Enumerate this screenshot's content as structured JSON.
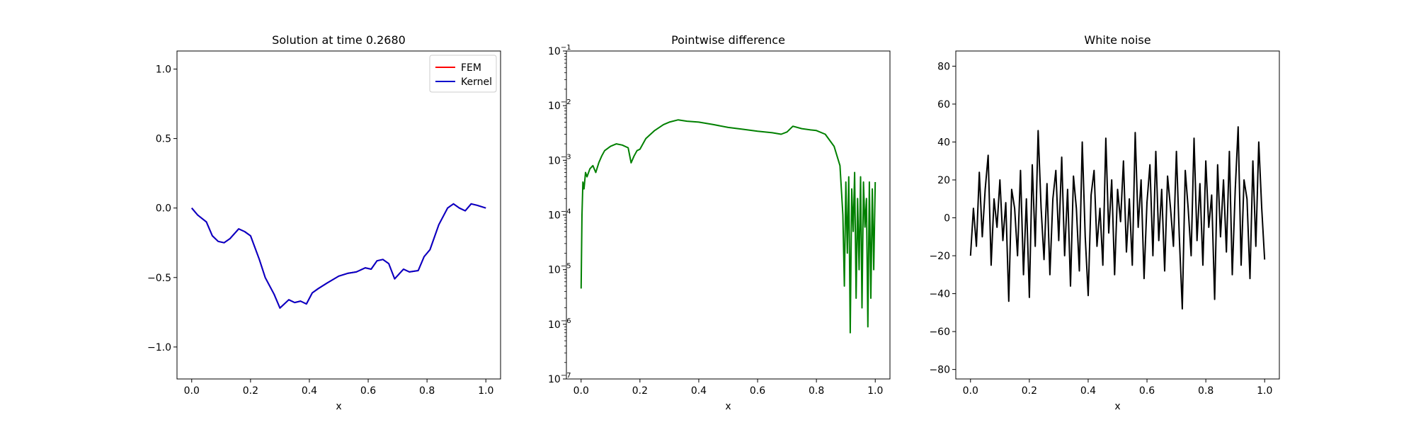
{
  "chart_data": [
    {
      "type": "line",
      "title": "Solution at time 0.2680",
      "xlabel": "x",
      "ylabel": "",
      "xlim": [
        -0.05,
        1.05
      ],
      "ylim": [
        -1.23,
        1.13
      ],
      "xticks": [
        0.0,
        0.2,
        0.4,
        0.6,
        0.8,
        1.0
      ],
      "xtick_labels": [
        "0.0",
        "0.2",
        "0.4",
        "0.6",
        "0.8",
        "1.0"
      ],
      "yticks": [
        -1.0,
        -0.5,
        0.0,
        0.5,
        1.0
      ],
      "ytick_labels": [
        "−1.0",
        "−0.5",
        "0.0",
        "0.5",
        "1.0"
      ],
      "grid": false,
      "legend": {
        "position": "top-right",
        "entries": [
          "FEM",
          "Kernel"
        ]
      },
      "series": [
        {
          "name": "FEM",
          "color": "#ff0000",
          "x": [
            0,
            0.02,
            0.05,
            0.07,
            0.09,
            0.11,
            0.13,
            0.16,
            0.18,
            0.2,
            0.23,
            0.25,
            0.28,
            0.3,
            0.33,
            0.35,
            0.37,
            0.39,
            0.41,
            0.43,
            0.46,
            0.5,
            0.53,
            0.56,
            0.59,
            0.61,
            0.63,
            0.65,
            0.67,
            0.69,
            0.72,
            0.74,
            0.77,
            0.79,
            0.81,
            0.84,
            0.87,
            0.89,
            0.91,
            0.93,
            0.95,
            0.97,
            1.0
          ],
          "y": [
            0,
            -0.05,
            -0.1,
            -0.2,
            -0.24,
            -0.25,
            -0.22,
            -0.15,
            -0.17,
            -0.2,
            -0.37,
            -0.5,
            -0.62,
            -0.72,
            -0.66,
            -0.68,
            -0.67,
            -0.69,
            -0.61,
            -0.58,
            -0.54,
            -0.49,
            -0.47,
            -0.46,
            -0.43,
            -0.44,
            -0.38,
            -0.37,
            -0.4,
            -0.51,
            -0.44,
            -0.46,
            -0.45,
            -0.35,
            -0.3,
            -0.12,
            0.0,
            0.03,
            0.0,
            -0.02,
            0.03,
            0.02,
            0.0
          ]
        },
        {
          "name": "Kernel",
          "color": "#0000cc",
          "x": [
            0,
            0.02,
            0.05,
            0.07,
            0.09,
            0.11,
            0.13,
            0.16,
            0.18,
            0.2,
            0.23,
            0.25,
            0.28,
            0.3,
            0.33,
            0.35,
            0.37,
            0.39,
            0.41,
            0.43,
            0.46,
            0.5,
            0.53,
            0.56,
            0.59,
            0.61,
            0.63,
            0.65,
            0.67,
            0.69,
            0.72,
            0.74,
            0.77,
            0.79,
            0.81,
            0.84,
            0.87,
            0.89,
            0.91,
            0.93,
            0.95,
            0.97,
            1.0
          ],
          "y": [
            0,
            -0.05,
            -0.1,
            -0.2,
            -0.24,
            -0.25,
            -0.22,
            -0.15,
            -0.17,
            -0.2,
            -0.37,
            -0.5,
            -0.62,
            -0.72,
            -0.66,
            -0.68,
            -0.67,
            -0.69,
            -0.61,
            -0.58,
            -0.54,
            -0.49,
            -0.47,
            -0.46,
            -0.43,
            -0.44,
            -0.38,
            -0.37,
            -0.4,
            -0.51,
            -0.44,
            -0.46,
            -0.45,
            -0.35,
            -0.3,
            -0.12,
            0.0,
            0.03,
            0.0,
            -0.02,
            0.03,
            0.02,
            0.0
          ]
        }
      ]
    },
    {
      "type": "line",
      "title": "Pointwise difference",
      "xlabel": "x",
      "ylabel": "",
      "yscale": "log",
      "xlim": [
        -0.05,
        1.05
      ],
      "ylim": [
        1e-07,
        0.1
      ],
      "xticks": [
        0.0,
        0.2,
        0.4,
        0.6,
        0.8,
        1.0
      ],
      "xtick_labels": [
        "0.0",
        "0.2",
        "0.4",
        "0.6",
        "0.8",
        "1.0"
      ],
      "yticks": [
        1e-07,
        1e-06,
        1e-05,
        0.0001,
        0.001,
        0.01,
        0.1
      ],
      "ytick_exponents": [
        "−7",
        "−6",
        "−5",
        "−4",
        "−3",
        "−2",
        "−1"
      ],
      "grid": false,
      "series": [
        {
          "color": "#008000",
          "x": [
            0.0,
            0.003,
            0.006,
            0.01,
            0.015,
            0.02,
            0.03,
            0.04,
            0.05,
            0.06,
            0.07,
            0.08,
            0.1,
            0.12,
            0.14,
            0.16,
            0.17,
            0.18,
            0.19,
            0.2,
            0.22,
            0.25,
            0.28,
            0.3,
            0.33,
            0.36,
            0.4,
            0.45,
            0.5,
            0.55,
            0.6,
            0.65,
            0.68,
            0.7,
            0.72,
            0.75,
            0.78,
            0.8,
            0.83,
            0.86,
            0.88,
            0.89,
            0.895,
            0.9,
            0.905,
            0.91,
            0.915,
            0.92,
            0.925,
            0.93,
            0.935,
            0.94,
            0.945,
            0.95,
            0.955,
            0.96,
            0.965,
            0.97,
            0.975,
            0.98,
            0.985,
            0.99,
            0.995,
            1.0
          ],
          "y": [
            4.5e-06,
            0.0001,
            0.0004,
            0.0003,
            0.0006,
            0.0005,
            0.0007,
            0.0008,
            0.0006,
            0.0009,
            0.0012,
            0.0015,
            0.0018,
            0.002,
            0.0019,
            0.0017,
            0.0009,
            0.0012,
            0.0015,
            0.0016,
            0.0025,
            0.0035,
            0.0045,
            0.005,
            0.0055,
            0.0052,
            0.005,
            0.0045,
            0.004,
            0.0037,
            0.0034,
            0.0032,
            0.003,
            0.0033,
            0.0042,
            0.0038,
            0.0036,
            0.0035,
            0.003,
            0.0018,
            0.0008,
            0.0001,
            5e-06,
            0.0004,
            2e-05,
            0.0005,
            7e-07,
            0.0003,
            5e-05,
            0.0006,
            3e-06,
            0.0002,
            1e-05,
            0.0005,
            2e-06,
            0.0004,
            6e-05,
            0.0002,
            9e-07,
            0.0004,
            3e-06,
            0.0003,
            1e-05,
            0.0004
          ]
        }
      ]
    },
    {
      "type": "line",
      "title": "White noise",
      "xlabel": "x",
      "ylabel": "",
      "xlim": [
        -0.05,
        1.05
      ],
      "ylim": [
        -85,
        88
      ],
      "xticks": [
        0.0,
        0.2,
        0.4,
        0.6,
        0.8,
        1.0
      ],
      "xtick_labels": [
        "0.0",
        "0.2",
        "0.4",
        "0.6",
        "0.8",
        "1.0"
      ],
      "yticks": [
        -80,
        -60,
        -40,
        -20,
        0,
        20,
        40,
        60,
        80
      ],
      "ytick_labels": [
        "−80",
        "−60",
        "−40",
        "−20",
        "0",
        "20",
        "40",
        "60",
        "80"
      ],
      "grid": false,
      "series": [
        {
          "color": "#000000",
          "x": [
            0.0,
            0.01,
            0.02,
            0.03,
            0.04,
            0.05,
            0.06,
            0.07,
            0.08,
            0.09,
            0.1,
            0.11,
            0.12,
            0.13,
            0.14,
            0.15,
            0.16,
            0.17,
            0.18,
            0.19,
            0.2,
            0.21,
            0.22,
            0.23,
            0.24,
            0.25,
            0.26,
            0.27,
            0.28,
            0.29,
            0.3,
            0.31,
            0.32,
            0.33,
            0.34,
            0.35,
            0.36,
            0.37,
            0.38,
            0.39,
            0.4,
            0.41,
            0.42,
            0.43,
            0.44,
            0.45,
            0.46,
            0.47,
            0.48,
            0.49,
            0.5,
            0.51,
            0.52,
            0.53,
            0.54,
            0.55,
            0.56,
            0.57,
            0.58,
            0.59,
            0.6,
            0.61,
            0.62,
            0.63,
            0.64,
            0.65,
            0.66,
            0.67,
            0.68,
            0.69,
            0.7,
            0.71,
            0.72,
            0.73,
            0.74,
            0.75,
            0.76,
            0.77,
            0.78,
            0.79,
            0.8,
            0.81,
            0.82,
            0.83,
            0.84,
            0.85,
            0.86,
            0.87,
            0.88,
            0.89,
            0.9,
            0.91,
            0.92,
            0.93,
            0.94,
            0.95,
            0.96,
            0.97,
            0.98,
            0.99,
            1.0
          ],
          "y": [
            -20,
            5,
            -15,
            24,
            -10,
            15,
            33,
            -25,
            10,
            -5,
            20,
            -12,
            8,
            -44,
            15,
            5,
            -20,
            25,
            -30,
            10,
            -42,
            28,
            -15,
            46,
            5,
            -22,
            18,
            -30,
            10,
            25,
            -12,
            32,
            -20,
            15,
            -36,
            22,
            5,
            -28,
            40,
            -10,
            -41,
            12,
            25,
            -15,
            5,
            -25,
            42,
            -8,
            20,
            -30,
            15,
            -2,
            30,
            -18,
            10,
            -25,
            45,
            -5,
            20,
            -32,
            8,
            28,
            -20,
            35,
            -12,
            15,
            -28,
            22,
            5,
            -15,
            35,
            -10,
            -48,
            25,
            5,
            -20,
            42,
            -12,
            18,
            -25,
            30,
            -5,
            12,
            -43,
            28,
            -10,
            20,
            -18,
            35,
            -30,
            15,
            48,
            -25,
            20,
            10,
            -32,
            30,
            -15,
            40,
            5,
            -22
          ]
        }
      ]
    }
  ]
}
